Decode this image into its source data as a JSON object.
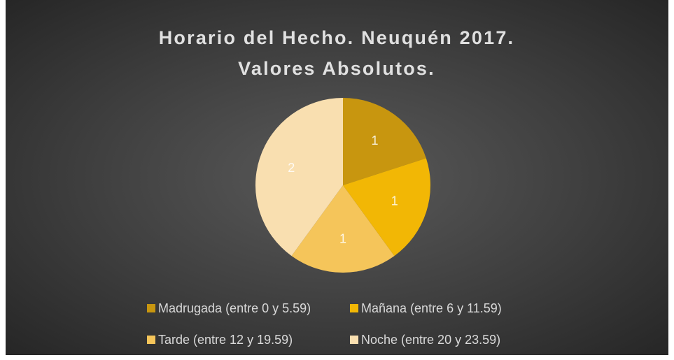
{
  "chart_data": {
    "type": "pie",
    "title": "Horario del Hecho. Neuquén 2017. Valores Absolutos.",
    "categories": [
      "Madrugada (entre 0 y 5.59)",
      "Mañana (entre 6 y 11.59)",
      "Tarde (entre 12 y 19.59)",
      "Noche (entre 20 y 23.59)"
    ],
    "values": [
      1,
      1,
      1,
      2
    ],
    "colors": [
      "#c8960f",
      "#f2b705",
      "#f5c55a",
      "#f9dfb0"
    ]
  }
}
